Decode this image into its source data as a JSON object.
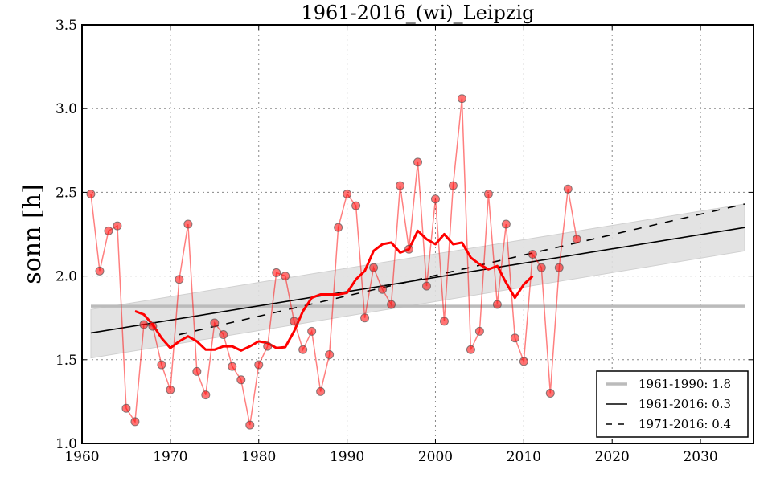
{
  "chart_data": {
    "type": "line",
    "title": "1961-2016_(wi)_Leipzig",
    "xlabel": "",
    "ylabel": "sonn [h]",
    "xlim": [
      1960,
      2036
    ],
    "ylim": [
      1.0,
      3.5
    ],
    "xticks": [
      1960,
      1970,
      1980,
      1990,
      2000,
      2010,
      2020,
      2030
    ],
    "yticks": [
      1.0,
      1.5,
      2.0,
      2.5,
      3.0,
      3.5
    ],
    "xtick_labels": [
      "1960",
      "1970",
      "1980",
      "1990",
      "2000",
      "2010",
      "2020",
      "2030"
    ],
    "ytick_labels": [
      "1.0",
      "1.5",
      "2.0",
      "2.5",
      "3.0",
      "3.5"
    ],
    "grid": true,
    "series": [
      {
        "name": "annual",
        "style": "markers-line",
        "color": "#ff0000",
        "x": [
          1961,
          1962,
          1963,
          1964,
          1965,
          1966,
          1967,
          1968,
          1969,
          1970,
          1971,
          1972,
          1973,
          1974,
          1975,
          1976,
          1977,
          1978,
          1979,
          1980,
          1981,
          1982,
          1983,
          1984,
          1985,
          1986,
          1987,
          1988,
          1989,
          1990,
          1991,
          1992,
          1993,
          1994,
          1995,
          1996,
          1997,
          1998,
          1999,
          2000,
          2001,
          2002,
          2003,
          2004,
          2005,
          2006,
          2007,
          2008,
          2009,
          2010,
          2011,
          2012,
          2013,
          2014,
          2015,
          2016
        ],
        "y": [
          2.49,
          2.03,
          2.27,
          2.3,
          1.21,
          1.13,
          1.71,
          1.7,
          1.47,
          1.32,
          1.98,
          2.31,
          1.43,
          1.29,
          1.72,
          1.65,
          1.46,
          1.38,
          1.11,
          1.47,
          1.58,
          2.02,
          2.0,
          1.73,
          1.56,
          1.67,
          1.31,
          1.53,
          2.29,
          2.49,
          2.42,
          1.75,
          2.05,
          1.92,
          1.83,
          2.54,
          2.16,
          2.68,
          1.94,
          2.46,
          1.73,
          2.54,
          3.06,
          1.56,
          1.67,
          2.49,
          1.83,
          2.31,
          1.63,
          1.49,
          2.13,
          2.05,
          1.3,
          2.05,
          2.52,
          2.22
        ]
      },
      {
        "name": "moving-average",
        "style": "thick-line",
        "color": "#ff0000",
        "x": [
          1966,
          1967,
          1968,
          1969,
          1970,
          1971,
          1972,
          1973,
          1974,
          1975,
          1976,
          1977,
          1978,
          1979,
          1980,
          1981,
          1982,
          1983,
          1984,
          1985,
          1986,
          1987,
          1988,
          1989,
          1990,
          1991,
          1992,
          1993,
          1994,
          1995,
          1996,
          1997,
          1998,
          1999,
          2000,
          2001,
          2002,
          2003,
          2004,
          2005,
          2006,
          2007,
          2008,
          2009,
          2010,
          2011
        ],
        "y": [
          1.79,
          1.77,
          1.71,
          1.63,
          1.57,
          1.61,
          1.64,
          1.61,
          1.56,
          1.56,
          1.58,
          1.58,
          1.555,
          1.58,
          1.61,
          1.6,
          1.57,
          1.575,
          1.67,
          1.79,
          1.87,
          1.89,
          1.89,
          1.89,
          1.9,
          1.98,
          2.03,
          2.15,
          2.19,
          2.2,
          2.14,
          2.16,
          2.27,
          2.22,
          2.19,
          2.25,
          2.19,
          2.2,
          2.11,
          2.07,
          2.04,
          2.06,
          1.96,
          1.87,
          1.95,
          2.0
        ]
      }
    ],
    "reference_lines": [
      {
        "name": "1961-1990: 1.8",
        "kind": "mean",
        "x": [
          1961,
          2035
        ],
        "y": [
          1.82,
          1.82
        ],
        "color": "#bbbbbb",
        "dash": "solid"
      },
      {
        "name": "1961-2016: 0.3",
        "kind": "trend",
        "x": [
          1961,
          2035
        ],
        "y": [
          1.66,
          2.29
        ],
        "color": "#000000",
        "dash": "solid"
      },
      {
        "name": "1971-2016: 0.4",
        "kind": "trend",
        "x": [
          1971,
          2035
        ],
        "y": [
          1.65,
          2.43
        ],
        "color": "#000000",
        "dash": "dashed"
      }
    ],
    "confidence_band": {
      "x": [
        1961,
        2035
      ],
      "upper": [
        1.8,
        2.43
      ],
      "lower": [
        1.51,
        2.15
      ],
      "color": "#e0e0e0"
    },
    "legend": {
      "placement": "bottom-right",
      "entries": [
        {
          "label": "1961-1990: 1.8",
          "style": "gray-line"
        },
        {
          "label": "1961-2016: 0.3",
          "style": "solid-line"
        },
        {
          "label": "1971-2016: 0.4",
          "style": "dashed-line"
        }
      ]
    }
  }
}
